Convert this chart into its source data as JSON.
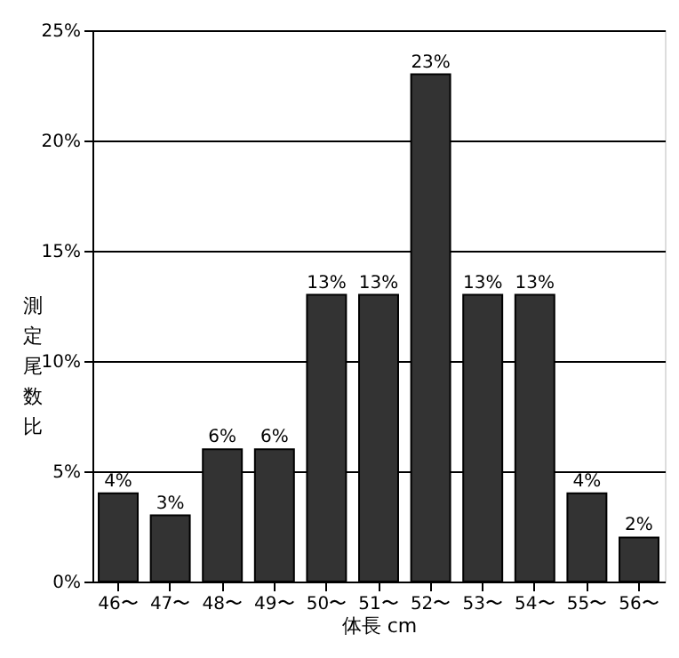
{
  "chart_data": {
    "type": "bar",
    "categories": [
      "46〜",
      "47〜",
      "48〜",
      "49〜",
      "50〜",
      "51〜",
      "52〜",
      "53〜",
      "54〜",
      "55〜",
      "56〜"
    ],
    "values": [
      4,
      3,
      6,
      6,
      13,
      13,
      23,
      13,
      13,
      4,
      2
    ],
    "value_labels": [
      "4%",
      "3%",
      "6%",
      "6%",
      "13%",
      "13%",
      "23%",
      "13%",
      "13%",
      "4%",
      "2%"
    ],
    "color": "#333333",
    "xlabel": "体長 cm",
    "ylabel": "測定尾数比",
    "ylim": [
      0,
      25
    ],
    "yticks": [
      {
        "value": 0,
        "label": "0%"
      },
      {
        "value": 5,
        "label": "5%"
      },
      {
        "value": 10,
        "label": "10%"
      },
      {
        "value": 15,
        "label": "15%"
      },
      {
        "value": 20,
        "label": "20%"
      },
      {
        "value": 25,
        "label": "25%"
      }
    ],
    "grid": "y"
  }
}
